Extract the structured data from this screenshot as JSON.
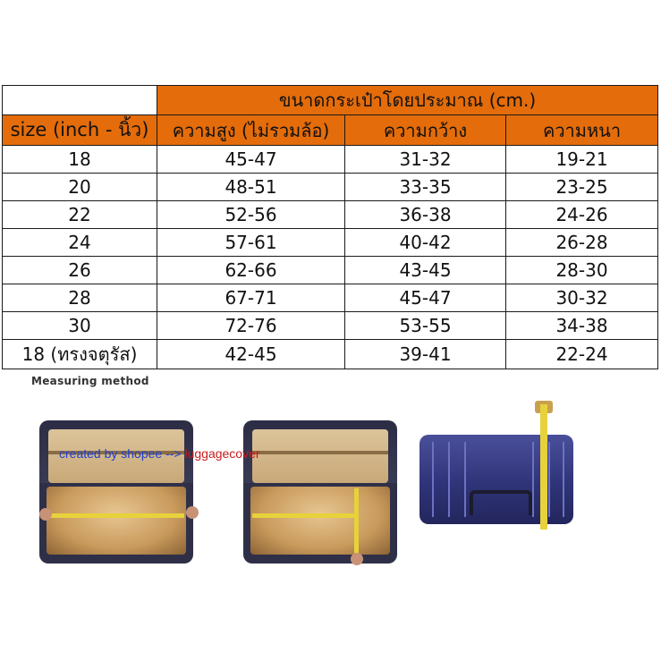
{
  "table": {
    "group_header": "ขนาดกระเป๋าโดยประมาณ (cm.)",
    "columns": [
      "size (inch - นิ้ว)",
      "ความสูง (ไม่รวมล้อ)",
      "ความกว้าง",
      "ความหนา"
    ],
    "rows": [
      [
        "18",
        "45-47",
        "31-32",
        "19-21"
      ],
      [
        "20",
        "48-51",
        "33-35",
        "23-25"
      ],
      [
        "22",
        "52-56",
        "36-38",
        "24-26"
      ],
      [
        "24",
        "57-61",
        "40-42",
        "26-28"
      ],
      [
        "26",
        "62-66",
        "43-45",
        "28-30"
      ],
      [
        "28",
        "67-71",
        "45-47",
        "30-32"
      ],
      [
        "30",
        "72-76",
        "53-55",
        "34-38"
      ],
      [
        "18 (ทรงจตุรัส)",
        "42-45",
        "39-41",
        "22-24"
      ]
    ]
  },
  "measuring": {
    "title": "Measuring method",
    "watermark_a": "created by shopee -->",
    "watermark_b": "luggagecover"
  },
  "colors": {
    "header_orange": "#e46c0a",
    "tape_yellow": "#e7d23b",
    "case_navy": "#2f3479"
  }
}
